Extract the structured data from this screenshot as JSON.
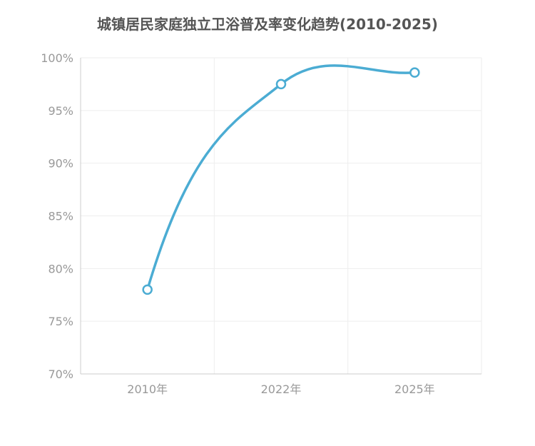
{
  "chart_data": {
    "type": "line",
    "title": "城镇居民家庭独立卫浴普及率变化趋势(2010-2025)",
    "xlabel": "",
    "ylabel": "",
    "categories": [
      "2010年",
      "2022年",
      "2025年"
    ],
    "series": [
      {
        "values": [
          78.0,
          97.5,
          98.6
        ]
      }
    ],
    "ylim": [
      70,
      100
    ],
    "y_ticks": [
      "70%",
      "75%",
      "80%",
      "85%",
      "90%",
      "95%",
      "100%"
    ],
    "grid": true,
    "smooth": true,
    "line_color": "#4bacd3",
    "grid_color": "#eeeeee",
    "axis_color": "#cccccc",
    "label_color": "#999999",
    "title_color": "#555555"
  }
}
